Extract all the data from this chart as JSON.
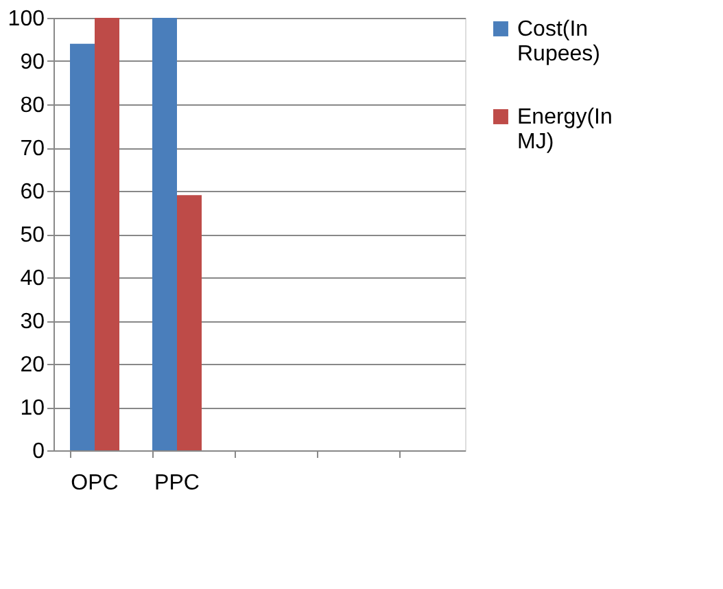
{
  "chart_data": {
    "type": "bar",
    "categories": [
      "OPC",
      "PPC",
      null,
      null,
      null
    ],
    "series": [
      {
        "name": "Cost(In Rupees)",
        "color": "#4a7ebb",
        "values": [
          94,
          100,
          null,
          null,
          null
        ]
      },
      {
        "name": "Energy(In MJ)",
        "color": "#be4b48",
        "values": [
          100,
          59,
          null,
          null,
          null
        ]
      }
    ],
    "ylim": [
      0,
      100
    ],
    "yticks": [
      0,
      10,
      20,
      30,
      40,
      50,
      60,
      70,
      80,
      90,
      100
    ],
    "grid": "y",
    "legend": "right"
  }
}
